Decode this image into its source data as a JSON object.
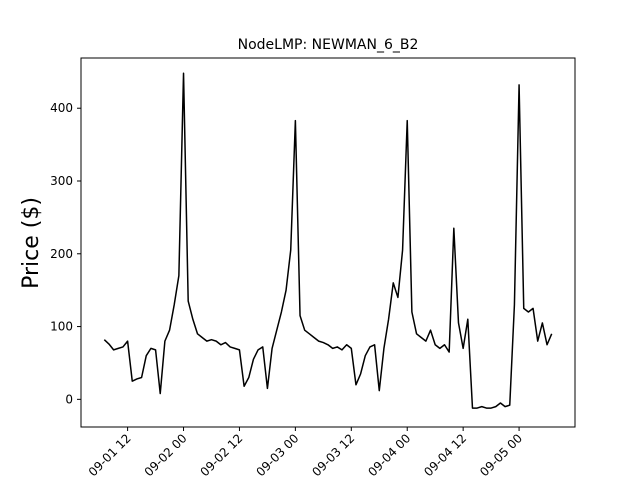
{
  "chart_data": {
    "type": "line",
    "title": "NodeLMP: NEWMAN_6_B2",
    "y_label": "Price ($)",
    "x": [
      "09-01 07",
      "09-01 08",
      "09-01 09",
      "09-01 10",
      "09-01 11",
      "09-01 12",
      "09-01 13",
      "09-01 14",
      "09-01 15",
      "09-01 16",
      "09-01 17",
      "09-01 18",
      "09-01 19",
      "09-01 20",
      "09-01 21",
      "09-01 22",
      "09-01 23",
      "09-02 00",
      "09-02 01",
      "09-02 02",
      "09-02 03",
      "09-02 04",
      "09-02 05",
      "09-02 06",
      "09-02 07",
      "09-02 08",
      "09-02 09",
      "09-02 10",
      "09-02 11",
      "09-02 12",
      "09-02 13",
      "09-02 14",
      "09-02 15",
      "09-02 16",
      "09-02 17",
      "09-02 18",
      "09-02 19",
      "09-02 20",
      "09-02 21",
      "09-02 22",
      "09-02 23",
      "09-03 00",
      "09-03 01",
      "09-03 02",
      "09-03 03",
      "09-03 04",
      "09-03 05",
      "09-03 06",
      "09-03 07",
      "09-03 08",
      "09-03 09",
      "09-03 10",
      "09-03 11",
      "09-03 12",
      "09-03 13",
      "09-03 14",
      "09-03 15",
      "09-03 16",
      "09-03 17",
      "09-03 18",
      "09-03 19",
      "09-03 20",
      "09-03 21",
      "09-03 22",
      "09-03 23",
      "09-04 00",
      "09-04 01",
      "09-04 02",
      "09-04 03",
      "09-04 04",
      "09-04 05",
      "09-04 06",
      "09-04 07",
      "09-04 08",
      "09-04 09",
      "09-04 10",
      "09-04 11",
      "09-04 12",
      "09-04 13",
      "09-04 14",
      "09-04 15",
      "09-04 16",
      "09-04 17",
      "09-04 18",
      "09-04 19",
      "09-04 20",
      "09-04 21",
      "09-04 22",
      "09-04 23",
      "09-05 00",
      "09-05 01",
      "09-05 02",
      "09-05 03",
      "09-05 04",
      "09-05 05",
      "09-05 06",
      "09-05 07"
    ],
    "series": [
      {
        "name": "NEWMAN_6_B2",
        "color": "#000000",
        "values": [
          82,
          76,
          68,
          70,
          72,
          80,
          25,
          28,
          30,
          60,
          70,
          68,
          8,
          80,
          95,
          130,
          170,
          448,
          135,
          110,
          90,
          85,
          80,
          82,
          80,
          75,
          78,
          72,
          70,
          68,
          18,
          30,
          55,
          68,
          72,
          15,
          70,
          95,
          120,
          150,
          205,
          383,
          115,
          95,
          90,
          85,
          80,
          78,
          75,
          70,
          72,
          68,
          75,
          70,
          20,
          35,
          60,
          72,
          75,
          12,
          70,
          110,
          160,
          140,
          205,
          383,
          120,
          90,
          85,
          80,
          95,
          75,
          70,
          75,
          65,
          235,
          105,
          70,
          110,
          -12,
          -12,
          -10,
          -12,
          -12,
          -10,
          -5,
          -10,
          -8,
          130,
          432,
          125,
          120,
          125,
          80,
          105,
          75,
          90
        ]
      }
    ],
    "xlim": [
      "09-01 02",
      "09-05 12"
    ],
    "xticks": [
      "09-01 12",
      "09-02 00",
      "09-02 12",
      "09-03 00",
      "09-03 12",
      "09-04 00",
      "09-04 12",
      "09-05 00"
    ],
    "ylim": [
      -38,
      469
    ],
    "yticks": [
      0,
      100,
      200,
      300,
      400
    ]
  }
}
